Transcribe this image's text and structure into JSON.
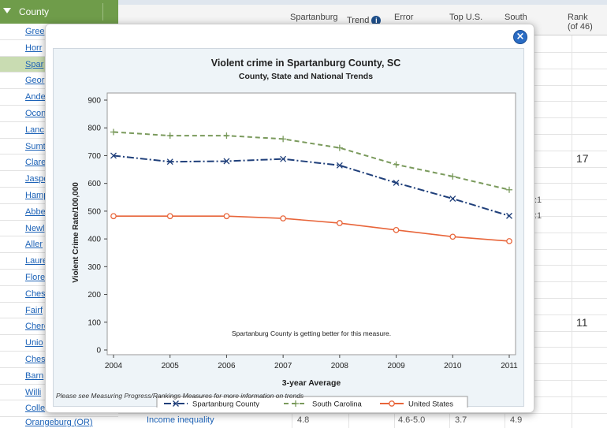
{
  "sidebar": {
    "header": "County",
    "items": [
      "Gree",
      "Horr",
      "Spar",
      "Geor",
      "Ande",
      "Ocon",
      "Lanc",
      "Sumt",
      "Clare",
      "Jaspe",
      "Hamp",
      "Abbe",
      "Newl",
      "Aller",
      "Laure",
      "Flore",
      "Ches",
      "Fairf",
      "Chero",
      "Unio",
      "Ches",
      "Barn",
      "Willi",
      "Colle"
    ],
    "selected_index": 2,
    "bottom_item": "Orangeburg (OR)"
  },
  "table": {
    "headers": {
      "county_col": "Spartanburg",
      "trend": "Trend",
      "error": "Error",
      "top_us": "Top U.S.",
      "south": "South",
      "rank": "Rank",
      "rank_sub": "(of 46)"
    },
    "rank_values": [
      "17",
      "11"
    ],
    "ratio_fragments": [
      ":1",
      ":1"
    ],
    "bottom_row": {
      "measure": "Income inequality",
      "county_value": "4.8",
      "error_margin": "4.6-5.0",
      "top_us": "3.7",
      "state": "4.9"
    }
  },
  "modal": {
    "close_label": "×",
    "footnote": "Please see Measuring Progress/Rankings Measures for more information on trends"
  },
  "chart_data": {
    "type": "line",
    "title": "Violent crime in Spartanburg County, SC",
    "subtitle": "County, State and National Trends",
    "xlabel": "3-year Average",
    "ylabel": "Violent Crime Rate/100,000",
    "annotation": "Spartanburg County is getting better for this measure.",
    "categories": [
      "2004",
      "2005",
      "2006",
      "2007",
      "2008",
      "2009",
      "2010",
      "2011"
    ],
    "ylim": [
      0,
      900
    ],
    "yticks": [
      "0",
      "100",
      "200",
      "300",
      "400",
      "500",
      "600",
      "700",
      "800",
      "900"
    ],
    "legend_position": "bottom",
    "series": [
      {
        "name": "Spartanburg County",
        "values": [
          700,
          678,
          680,
          688,
          665,
          602,
          545,
          483
        ],
        "color": "#1f3f7a",
        "marker": "x",
        "dash": "9,3,2,3"
      },
      {
        "name": "South Carolina",
        "values": [
          785,
          772,
          772,
          760,
          728,
          668,
          625,
          577
        ],
        "color": "#7a9a5c",
        "marker": "+",
        "dash": "6,4"
      },
      {
        "name": "United States",
        "values": [
          482,
          482,
          482,
          474,
          457,
          432,
          408,
          392
        ],
        "color": "#e8653a",
        "marker": "o",
        "dash": ""
      }
    ]
  }
}
